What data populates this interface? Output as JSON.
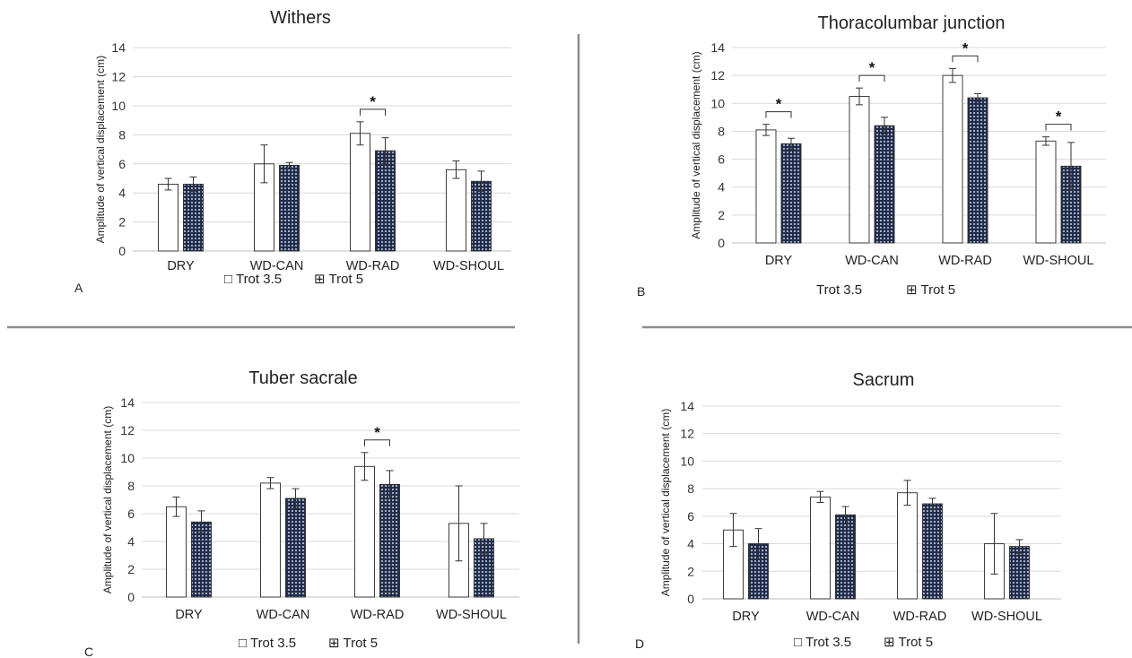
{
  "chart_data": [
    {
      "type": "bar",
      "panel": "A",
      "title": "Withers",
      "ylabel": "Amplitude of vertical displacement (cm)",
      "xlabel": "",
      "categories": [
        "DRY",
        "WD-CAN",
        "WD-RAD",
        "WD-SHOUL"
      ],
      "ylim": [
        0,
        14
      ],
      "yticks": [
        "0",
        "2",
        "4",
        "6",
        "8",
        "10",
        "12",
        "14"
      ],
      "series": [
        {
          "name": "Trot 3.5",
          "values": [
            4.6,
            6.0,
            8.1,
            5.6
          ],
          "errors": [
            0.4,
            1.3,
            0.8,
            0.6
          ]
        },
        {
          "name": "Trot 5",
          "values": [
            4.6,
            5.9,
            6.9,
            4.8
          ],
          "errors": [
            0.5,
            0.2,
            0.9,
            0.7
          ]
        }
      ],
      "significance": [
        {
          "category": "WD-RAD",
          "label": "*"
        }
      ],
      "legend": [
        "□ Trot 3.5",
        "⊞ Trot 5"
      ],
      "grid": true,
      "legend_position": "bottom"
    },
    {
      "type": "bar",
      "panel": "B",
      "title": "Thoracolumbar junction",
      "ylabel": "Amplitude of vertical displacement (cm)",
      "xlabel": "",
      "categories": [
        "DRY",
        "WD-CAN",
        "WD-RAD",
        "WD-SHOUL"
      ],
      "ylim": [
        0,
        14
      ],
      "yticks": [
        "0",
        "2",
        "4",
        "6",
        "8",
        "10",
        "12",
        "14"
      ],
      "series": [
        {
          "name": "Trot 3.5",
          "values": [
            8.1,
            10.5,
            12.0,
            7.3
          ],
          "errors": [
            0.4,
            0.6,
            0.5,
            0.3
          ]
        },
        {
          "name": "Trot 5",
          "values": [
            7.1,
            8.4,
            10.4,
            5.5
          ],
          "errors": [
            0.4,
            0.6,
            0.3,
            1.7
          ]
        }
      ],
      "significance": [
        {
          "category": "DRY",
          "label": "*"
        },
        {
          "category": "WD-CAN",
          "label": "*"
        },
        {
          "category": "WD-RAD",
          "label": "*"
        },
        {
          "category": "WD-SHOUL",
          "label": "*"
        }
      ],
      "legend": [
        "Trot 3.5",
        "⊞ Trot 5"
      ],
      "grid": true,
      "legend_position": "bottom"
    },
    {
      "type": "bar",
      "panel": "C",
      "title": "Tuber sacrale",
      "ylabel": "Amplitude of vertical displacement (cm)",
      "xlabel": "",
      "categories": [
        "DRY",
        "WD-CAN",
        "WD-RAD",
        "WD-SHOUL"
      ],
      "ylim": [
        0,
        14
      ],
      "yticks": [
        "0",
        "2",
        "4",
        "6",
        "8",
        "10",
        "12",
        "14"
      ],
      "series": [
        {
          "name": "Trot 3.5",
          "values": [
            6.5,
            8.2,
            9.4,
            5.3
          ],
          "errors": [
            0.7,
            0.4,
            1.0,
            2.7
          ]
        },
        {
          "name": "Trot 5",
          "values": [
            5.4,
            7.1,
            8.1,
            4.2
          ],
          "errors": [
            0.8,
            0.7,
            1.0,
            1.1
          ]
        }
      ],
      "significance": [
        {
          "category": "WD-RAD",
          "label": "*"
        }
      ],
      "legend": [
        "□ Trot 3.5",
        "⊞ Trot 5"
      ],
      "grid": true,
      "legend_position": "bottom"
    },
    {
      "type": "bar",
      "panel": "D",
      "title": "Sacrum",
      "ylabel": "Amplitude of vertical displacement (cm)",
      "xlabel": "",
      "categories": [
        "DRY",
        "WD-CAN",
        "WD-RAD",
        "WD-SHOUL"
      ],
      "ylim": [
        0,
        14
      ],
      "yticks": [
        "0",
        "2",
        "4",
        "6",
        "8",
        "10",
        "12",
        "14"
      ],
      "series": [
        {
          "name": "Trot 3.5",
          "values": [
            5.0,
            7.4,
            7.7,
            4.0
          ],
          "errors": [
            1.2,
            0.4,
            0.9,
            2.2
          ]
        },
        {
          "name": "Trot 5",
          "values": [
            4.0,
            6.1,
            6.9,
            3.8
          ],
          "errors": [
            1.1,
            0.6,
            0.4,
            0.5
          ]
        }
      ],
      "significance": [],
      "legend": [
        "□ Trot 3.5",
        "⊞ Trot 5"
      ],
      "grid": true,
      "legend_position": "bottom"
    }
  ],
  "colors": {
    "bar_open_fill": "#ffffff",
    "bar_outline": "#2a2a2a",
    "pattern_fill": "#8d9ab4",
    "pattern_bg": "#1f2b48",
    "grid": "#d9d9d9",
    "axis": "#bfbfbf",
    "divider": "#8c8c8c"
  }
}
